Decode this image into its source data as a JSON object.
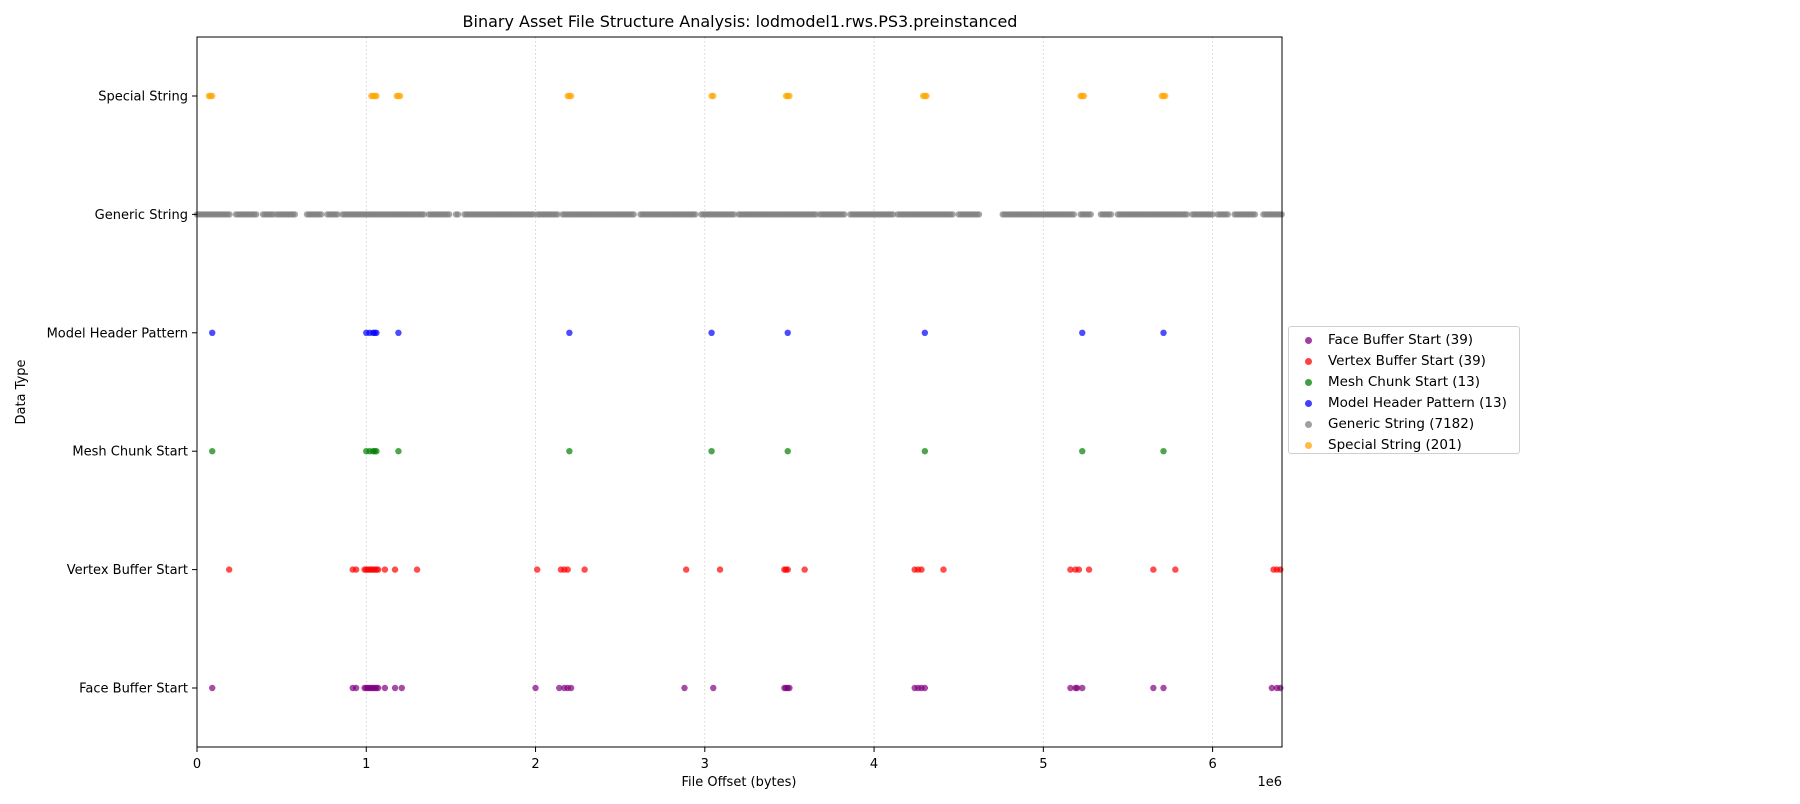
{
  "chart_data": {
    "type": "scatter",
    "title": "Binary Asset File Structure Analysis: lodmodel1.rws.PS3.preinstanced",
    "xlabel": "File Offset (bytes)",
    "ylabel": "Data Type",
    "x_offset_label": "1e6",
    "xlim": [
      0,
      6.41
    ],
    "x_ticks": [
      {
        "value": 0,
        "label": "0"
      },
      {
        "value": 1,
        "label": "1"
      },
      {
        "value": 2,
        "label": "2"
      },
      {
        "value": 3,
        "label": "3"
      },
      {
        "value": 4,
        "label": "4"
      },
      {
        "value": 5,
        "label": "5"
      },
      {
        "value": 6,
        "label": "6"
      }
    ],
    "grid": "x-dotted",
    "legend_placement": "outside-right",
    "categories": [
      "Face Buffer Start",
      "Vertex Buffer Start",
      "Mesh Chunk Start",
      "Model Header Pattern",
      "Generic String",
      "Special String"
    ],
    "series": [
      {
        "name": "Face Buffer Start (39)",
        "category": "Face Buffer Start",
        "color": "#800080",
        "x": [
          0.09,
          0.92,
          0.94,
          0.99,
          1.0,
          1.01,
          1.02,
          1.03,
          1.04,
          1.05,
          1.06,
          1.07,
          1.11,
          1.17,
          1.21,
          2.0,
          2.14,
          2.17,
          2.19,
          2.21,
          2.88,
          3.05,
          3.47,
          3.48,
          3.49,
          3.5,
          4.24,
          4.26,
          4.28,
          4.3,
          5.16,
          5.19,
          5.2,
          5.23,
          5.65,
          5.71,
          6.35,
          6.38,
          6.4
        ]
      },
      {
        "name": "Vertex Buffer Start (39)",
        "category": "Vertex Buffer Start",
        "color": "#ff0000",
        "x": [
          0.19,
          0.92,
          0.94,
          0.99,
          1.0,
          1.01,
          1.02,
          1.03,
          1.04,
          1.05,
          1.06,
          1.07,
          1.11,
          1.17,
          1.3,
          2.01,
          2.15,
          2.17,
          2.19,
          2.29,
          2.89,
          3.09,
          3.47,
          3.48,
          3.49,
          3.59,
          4.24,
          4.26,
          4.28,
          4.41,
          5.16,
          5.19,
          5.21,
          5.27,
          5.65,
          5.78,
          6.36,
          6.38,
          6.4
        ]
      },
      {
        "name": "Mesh Chunk Start (13)",
        "category": "Mesh Chunk Start",
        "color": "#008000",
        "x": [
          0.09,
          1.0,
          1.02,
          1.04,
          1.06,
          1.19,
          2.2,
          3.04,
          3.49,
          4.3,
          5.23,
          5.71,
          1.05
        ]
      },
      {
        "name": "Model Header Pattern (13)",
        "category": "Model Header Pattern",
        "color": "#0000ff",
        "x": [
          0.09,
          1.0,
          1.02,
          1.04,
          1.06,
          1.19,
          2.2,
          3.04,
          3.49,
          4.3,
          5.23,
          5.71,
          1.05
        ]
      },
      {
        "name": "Generic String (7182)",
        "category": "Generic String",
        "color": "#808080",
        "segments": [
          [
            0.0,
            0.2
          ],
          [
            0.23,
            0.36
          ],
          [
            0.39,
            0.45
          ],
          [
            0.47,
            0.58
          ],
          [
            0.65,
            0.74
          ],
          [
            0.77,
            0.83
          ],
          [
            0.86,
            1.35
          ],
          [
            1.37,
            1.5
          ],
          [
            1.53,
            1.55
          ],
          [
            1.58,
            1.99
          ],
          [
            2.01,
            2.13
          ],
          [
            2.16,
            2.59
          ],
          [
            2.62,
            2.95
          ],
          [
            2.98,
            3.18
          ],
          [
            3.2,
            3.66
          ],
          [
            3.68,
            3.83
          ],
          [
            3.86,
            4.12
          ],
          [
            4.14,
            4.47
          ],
          [
            4.5,
            4.63
          ],
          [
            4.76,
            5.18
          ],
          [
            5.22,
            5.28
          ],
          [
            5.34,
            5.4
          ],
          [
            5.44,
            5.85
          ],
          [
            5.88,
            6.0
          ],
          [
            6.03,
            6.1
          ],
          [
            6.13,
            6.26
          ],
          [
            6.3,
            6.41
          ]
        ]
      },
      {
        "name": "Special String (201)",
        "category": "Special String",
        "color": "#ffa500",
        "x": [
          0.07,
          0.08,
          0.09,
          1.03,
          1.04,
          1.05,
          1.06,
          1.18,
          1.19,
          1.2,
          2.19,
          2.2,
          2.21,
          3.04,
          3.05,
          3.48,
          3.49,
          3.5,
          4.29,
          4.3,
          4.31,
          5.22,
          5.23,
          5.24,
          5.7,
          5.71,
          5.72
        ]
      }
    ]
  }
}
